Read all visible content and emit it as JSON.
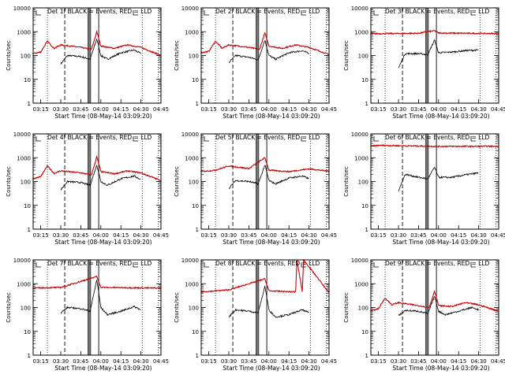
{
  "chart_data": [
    {
      "type": "line",
      "title": "Det 1f BLACK = Events, RED = LLD",
      "xlabel": "Start Time (08-May-14 03:09:20)",
      "ylabel": "Counts/sec",
      "x_ticks": [
        "03:15",
        "03:30",
        "03:45",
        "04:00",
        "04:15",
        "04:30",
        "04:45"
      ],
      "y_ticks": [
        "1",
        "10",
        "100",
        "1000",
        "10000"
      ],
      "y_scale": "log",
      "ylim": [
        1,
        10000
      ],
      "red_profile": "lld1",
      "black_offset": 0,
      "series": [
        {
          "name": "Events",
          "color": "#000000",
          "x": [
            "03:30",
            "03:35",
            "03:45",
            "03:52",
            "03:57",
            "04:00",
            "04:05",
            "04:15",
            "04:25",
            "04:30"
          ],
          "values": [
            45,
            100,
            90,
            70,
            500,
            100,
            70,
            130,
            170,
            120
          ]
        },
        {
          "name": "LLD",
          "color": "#cc0000",
          "x": [
            "03:09",
            "03:15",
            "03:20",
            "03:25",
            "03:30",
            "03:45",
            "03:53",
            "03:57",
            "04:00",
            "04:10",
            "04:20",
            "04:30",
            "04:45"
          ],
          "values": [
            120,
            140,
            400,
            200,
            280,
            220,
            180,
            1000,
            250,
            200,
            280,
            220,
            100
          ]
        }
      ]
    },
    {
      "type": "line",
      "title": "Det 2f BLACK = Events, RED = LLD",
      "xlabel": "Start Time (08-May-14 03:09:20)",
      "ylabel": "Counts/sec",
      "x_ticks": [
        "03:15",
        "03:30",
        "03:45",
        "04:00",
        "04:15",
        "04:30",
        "04:45"
      ],
      "y_ticks": [
        "1",
        "10",
        "100",
        "1000",
        "10000"
      ],
      "y_scale": "log",
      "ylim": [
        1,
        10000
      ],
      "red_profile": "lld1",
      "black_offset": 0,
      "series": [
        {
          "name": "Events",
          "color": "#000000",
          "x": [
            "03:30",
            "03:35",
            "03:45",
            "03:52",
            "03:57",
            "04:00",
            "04:05",
            "04:15",
            "04:25",
            "04:30"
          ],
          "values": [
            50,
            100,
            85,
            65,
            450,
            100,
            70,
            130,
            160,
            120
          ]
        },
        {
          "name": "LLD",
          "color": "#cc0000",
          "x": [
            "03:09",
            "03:15",
            "03:20",
            "03:25",
            "03:30",
            "03:45",
            "03:53",
            "03:57",
            "04:00",
            "04:10",
            "04:20",
            "04:30",
            "04:45"
          ],
          "values": [
            130,
            150,
            400,
            200,
            280,
            220,
            180,
            900,
            250,
            200,
            280,
            220,
            110
          ]
        }
      ]
    },
    {
      "type": "line",
      "title": "Det 3f BLACK = Events, RED = LLD",
      "xlabel": "Start Time (08-May-14 03:09:20)",
      "ylabel": "Counts/sec",
      "x_ticks": [
        "03:15",
        "03:30",
        "03:45",
        "04:00",
        "04:15",
        "04:30",
        "04:45"
      ],
      "y_ticks": [
        "1",
        "10",
        "100",
        "1000",
        "10000"
      ],
      "y_scale": "log",
      "ylim": [
        1,
        10000
      ],
      "red_profile": "flat",
      "red_level": 850,
      "black_offset": 0,
      "series": [
        {
          "name": "Events",
          "color": "#000000",
          "x": [
            "03:30",
            "03:35",
            "03:45",
            "03:52",
            "03:57",
            "04:00",
            "04:10",
            "04:20",
            "04:30"
          ],
          "values": [
            30,
            120,
            120,
            110,
            450,
            130,
            140,
            160,
            170
          ]
        },
        {
          "name": "LLD",
          "color": "#cc0000",
          "x": [
            "03:09",
            "03:45",
            "03:57",
            "04:00",
            "04:45"
          ],
          "values": [
            820,
            860,
            1100,
            880,
            830
          ]
        }
      ]
    },
    {
      "type": "line",
      "title": "Det 4f BLACK = Events, RED = LLD",
      "xlabel": "Start Time (08-May-14 03:09:20)",
      "ylabel": "Counts/sec",
      "x_ticks": [
        "03:15",
        "03:30",
        "03:45",
        "04:00",
        "04:15",
        "04:30",
        "04:45"
      ],
      "y_ticks": [
        "1",
        "10",
        "100",
        "1000",
        "10000"
      ],
      "y_scale": "log",
      "ylim": [
        1,
        10000
      ],
      "red_profile": "lld1",
      "black_offset": 0,
      "series": [
        {
          "name": "Events",
          "color": "#000000",
          "x": [
            "03:30",
            "03:35",
            "03:45",
            "03:52",
            "03:57",
            "04:00",
            "04:05",
            "04:15",
            "04:25",
            "04:30"
          ],
          "values": [
            45,
            100,
            90,
            70,
            500,
            100,
            70,
            130,
            170,
            120
          ]
        },
        {
          "name": "LLD",
          "color": "#cc0000",
          "x": [
            "03:09",
            "03:15",
            "03:20",
            "03:25",
            "03:30",
            "03:45",
            "03:53",
            "03:57",
            "04:00",
            "04:10",
            "04:20",
            "04:30",
            "04:45"
          ],
          "values": [
            130,
            160,
            450,
            220,
            280,
            230,
            190,
            1100,
            260,
            210,
            280,
            230,
            110
          ]
        }
      ]
    },
    {
      "type": "line",
      "title": "Det 5f BLACK = Events, RED = LLD",
      "xlabel": "Start Time (08-May-14 03:09:20)",
      "ylabel": "Counts/sec",
      "x_ticks": [
        "03:15",
        "03:30",
        "03:45",
        "04:00",
        "04:15",
        "04:30",
        "04:45"
      ],
      "y_ticks": [
        "1",
        "10",
        "100",
        "1000",
        "10000"
      ],
      "y_scale": "log",
      "ylim": [
        1,
        10000
      ],
      "red_profile": "lld2",
      "black_offset": 0,
      "series": [
        {
          "name": "Events",
          "color": "#000000",
          "x": [
            "03:30",
            "03:35",
            "03:45",
            "03:52",
            "03:57",
            "04:00",
            "04:05",
            "04:15",
            "04:25",
            "04:30"
          ],
          "values": [
            50,
            110,
            100,
            80,
            500,
            110,
            80,
            140,
            170,
            130
          ]
        },
        {
          "name": "LLD",
          "color": "#cc0000",
          "x": [
            "03:09",
            "03:20",
            "03:30",
            "03:45",
            "03:57",
            "04:00",
            "04:15",
            "04:30",
            "04:45"
          ],
          "values": [
            260,
            300,
            450,
            350,
            1000,
            300,
            260,
            340,
            270
          ]
        }
      ]
    },
    {
      "type": "line",
      "title": "Det 6f BLACK = Events, RED = LLD",
      "xlabel": "Start Time (08-May-14 03:09:20)",
      "ylabel": "Counts/sec",
      "x_ticks": [
        "03:15",
        "03:30",
        "03:45",
        "04:00",
        "04:15",
        "04:30",
        "04:45"
      ],
      "y_ticks": [
        "1",
        "10",
        "100",
        "1000",
        "10000"
      ],
      "y_scale": "log",
      "ylim": [
        1,
        10000
      ],
      "red_profile": "flat",
      "red_level": 3000,
      "black_offset": 0,
      "series": [
        {
          "name": "Events",
          "color": "#000000",
          "x": [
            "03:30",
            "03:35",
            "03:45",
            "03:52",
            "03:57",
            "04:00",
            "04:10",
            "04:20",
            "04:30"
          ],
          "values": [
            40,
            200,
            150,
            130,
            400,
            150,
            150,
            190,
            230
          ]
        },
        {
          "name": "LLD",
          "color": "#cc0000",
          "x": [
            "03:09",
            "03:15",
            "03:57",
            "04:45"
          ],
          "values": [
            3000,
            3300,
            3000,
            3000
          ]
        }
      ]
    },
    {
      "type": "line",
      "title": "Det 7f BLACK = Events, RED = LLD",
      "xlabel": "Start Time (08-May-14 03:09:20)",
      "ylabel": "Counts/sec",
      "x_ticks": [
        "03:15",
        "03:30",
        "03:45",
        "04:00",
        "04:15",
        "04:30",
        "04:45"
      ],
      "y_ticks": [
        "1",
        "10",
        "100",
        "1000",
        "10000"
      ],
      "y_scale": "log",
      "ylim": [
        1,
        10000
      ],
      "red_profile": "noisyflat",
      "red_level": 700,
      "black_offset": 0,
      "series": [
        {
          "name": "Events",
          "color": "#000000",
          "x": [
            "03:30",
            "03:35",
            "03:45",
            "03:52",
            "03:57",
            "04:00",
            "04:05",
            "04:15",
            "04:25",
            "04:30"
          ],
          "values": [
            60,
            100,
            90,
            70,
            1500,
            100,
            50,
            70,
            110,
            80
          ]
        },
        {
          "name": "LLD",
          "color": "#cc0000",
          "x": [
            "03:09",
            "03:30",
            "03:57",
            "04:00",
            "04:45"
          ],
          "values": [
            650,
            700,
            2000,
            700,
            650
          ]
        }
      ]
    },
    {
      "type": "line",
      "title": "Det 8f BLACK = Events, RED = LLD",
      "xlabel": "Start Time (08-May-14 03:09:20)",
      "ylabel": "Counts/sec",
      "x_ticks": [
        "03:15",
        "03:30",
        "03:45",
        "04:00",
        "04:15",
        "04:30",
        "04:45"
      ],
      "y_ticks": [
        "1",
        "10",
        "100",
        "1000",
        "10000"
      ],
      "y_scale": "log",
      "ylim": [
        1,
        10000
      ],
      "red_profile": "noisyflat8",
      "red_level": 500,
      "black_offset": 0,
      "series": [
        {
          "name": "Events",
          "color": "#000000",
          "x": [
            "03:30",
            "03:35",
            "03:45",
            "03:52",
            "03:57",
            "04:00",
            "04:05",
            "04:15",
            "04:25",
            "04:30"
          ],
          "values": [
            40,
            80,
            70,
            60,
            800,
            80,
            40,
            50,
            80,
            60
          ]
        },
        {
          "name": "LLD",
          "color": "#cc0000",
          "x": [
            "03:09",
            "03:30",
            "03:57",
            "04:00",
            "04:20",
            "04:21",
            "04:25",
            "04:26",
            "04:45"
          ],
          "values": [
            450,
            550,
            1600,
            500,
            450,
            10000,
            450,
            10000,
            420
          ]
        }
      ]
    },
    {
      "type": "line",
      "title": "Det 9f BLACK = Events, RED = LLD",
      "xlabel": "Start Time (08-May-14 03:09:20)",
      "ylabel": "Counts/sec",
      "x_ticks": [
        "03:15",
        "03:30",
        "03:45",
        "04:00",
        "04:15",
        "04:30",
        "04:45"
      ],
      "y_ticks": [
        "1",
        "10",
        "100",
        "1000",
        "10000"
      ],
      "y_scale": "log",
      "ylim": [
        1,
        10000
      ],
      "red_profile": "lld9",
      "black_offset": 0,
      "series": [
        {
          "name": "Events",
          "color": "#000000",
          "x": [
            "03:30",
            "03:35",
            "03:45",
            "03:52",
            "03:57",
            "04:00",
            "04:05",
            "04:15",
            "04:25",
            "04:30"
          ],
          "values": [
            45,
            75,
            70,
            55,
            300,
            70,
            50,
            70,
            100,
            80
          ]
        },
        {
          "name": "LLD",
          "color": "#cc0000",
          "x": [
            "03:09",
            "03:15",
            "03:20",
            "03:25",
            "03:30",
            "03:45",
            "03:53",
            "03:57",
            "04:00",
            "04:10",
            "04:20",
            "04:30",
            "04:45"
          ],
          "values": [
            70,
            90,
            250,
            130,
            160,
            120,
            100,
            500,
            120,
            110,
            160,
            130,
            70
          ]
        }
      ]
    }
  ]
}
